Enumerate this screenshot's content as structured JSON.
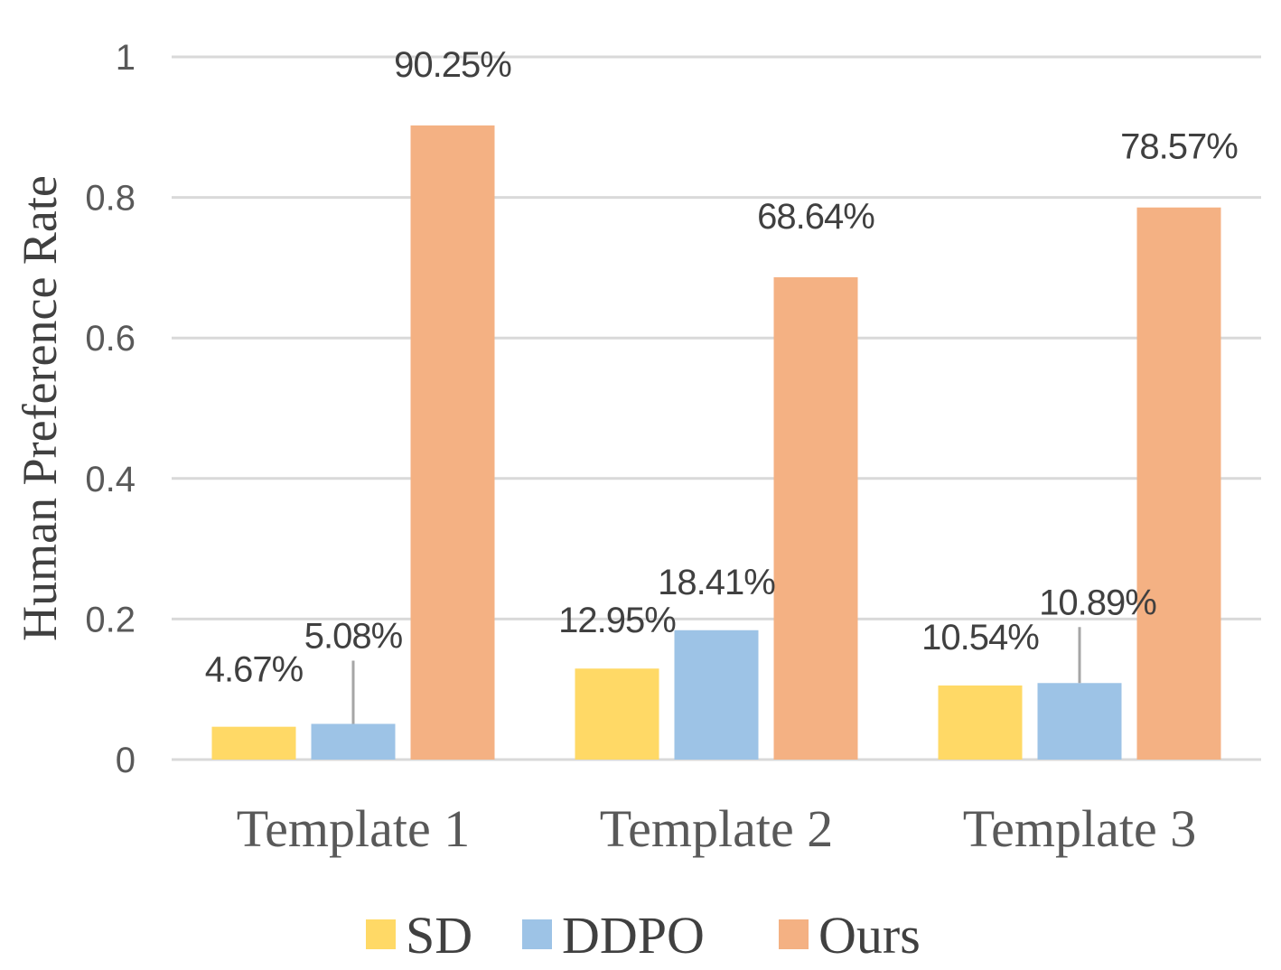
{
  "chart_data": {
    "type": "bar",
    "title": "",
    "xlabel": "",
    "ylabel": "Human Preference Rate",
    "ylim": [
      0,
      1
    ],
    "yticks": [
      0,
      0.2,
      0.4,
      0.6,
      0.8,
      1
    ],
    "ytick_labels": [
      "0",
      "0.2",
      "0.4",
      "0.6",
      "0.8",
      "1"
    ],
    "grid": true,
    "legend_position": "bottom",
    "categories": [
      "Template 1",
      "Template 2",
      "Template 3"
    ],
    "series": [
      {
        "name": "SD",
        "color": "#FFD966",
        "values": [
          0.0467,
          0.1295,
          0.1054
        ],
        "labels": [
          "4.67%",
          "12.95%",
          "10.54%"
        ]
      },
      {
        "name": "DDPO",
        "color": "#9DC3E6",
        "values": [
          0.0508,
          0.1841,
          0.1089
        ],
        "labels": [
          "5.08%",
          "18.41%",
          "10.89%"
        ]
      },
      {
        "name": "Ours",
        "color": "#F4B183",
        "values": [
          0.9025,
          0.6864,
          0.7857
        ],
        "labels": [
          "90.25%",
          "68.64%",
          "78.57%"
        ]
      }
    ]
  }
}
